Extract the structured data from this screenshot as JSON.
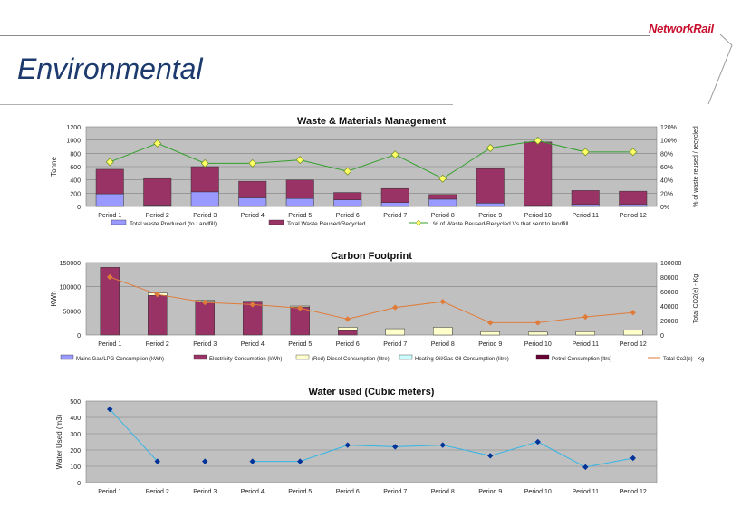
{
  "page": {
    "title": "Environmental",
    "logo": "NetworkRail"
  },
  "colors": {
    "title": "#1c3a6e",
    "logo": "#c8102e",
    "plot_bg": "#c0c0c0",
    "bar_maroon": "#993366",
    "bar_lilac": "#9999ff",
    "bar_cream": "#ffffcc",
    "line_green": "#33a02c",
    "marker_yellow": "#ffff66",
    "line_orange": "#e07b39",
    "line_blue": "#33b5e5",
    "marker_navy": "#003399"
  },
  "chart_data": [
    {
      "type": "bar",
      "title": "Waste & Materials Management",
      "ylabel": "Tonne",
      "y2label": "% of waste reused / recycled",
      "ylim": [
        0,
        1200
      ],
      "yticks": [
        "0",
        "200",
        "400",
        "600",
        "800",
        "1000",
        "1200"
      ],
      "y2lim": [
        0,
        120
      ],
      "y2ticks": [
        "0%",
        "20%",
        "40%",
        "60%",
        "80%",
        "100%",
        "120%"
      ],
      "categories": [
        "Period 1",
        "Period 2",
        "Period 3",
        "Period 4",
        "Period 5",
        "Period 6",
        "Period 7",
        "Period 8",
        "Period 9",
        "Period 10",
        "Period 11",
        "Period 12"
      ],
      "series": [
        {
          "name": "Total waste Produced (to Landfill)",
          "kind": "bar-bottom",
          "color": "#9999ff",
          "values": [
            190,
            20,
            220,
            130,
            120,
            100,
            60,
            110,
            50,
            15,
            30,
            30
          ]
        },
        {
          "name": "Total Waste Reused/Recycled",
          "kind": "bar-top",
          "color": "#993366",
          "values": [
            370,
            400,
            380,
            250,
            280,
            110,
            210,
            70,
            520,
            955,
            210,
            200
          ]
        },
        {
          "name": "% of Waste Reused/Recycled Vs that sent to landfill",
          "kind": "line",
          "axis": "y2",
          "values": [
            67,
            95,
            65,
            65,
            70,
            53,
            78,
            42,
            88,
            99,
            82,
            82
          ]
        }
      ]
    },
    {
      "type": "bar",
      "title": "Carbon Footprint",
      "ylabel": "KWh",
      "y2label": "Total CO2(e) - Kg",
      "ylim": [
        0,
        150000
      ],
      "yticks": [
        "0",
        "50000",
        "100000",
        "150000"
      ],
      "y2lim": [
        0,
        100000
      ],
      "y2ticks": [
        "0",
        "20000",
        "40000",
        "60000",
        "80000",
        "100000"
      ],
      "categories": [
        "Period 1",
        "Period 2",
        "Period 3",
        "Period 4",
        "Period 5",
        "Period 6",
        "Period 7",
        "Period 8",
        "Period 9",
        "Period 10",
        "Period 11",
        "Period 12"
      ],
      "series": [
        {
          "name": "Mains Gas/LPG Consumption (kWh)",
          "kind": "bar",
          "color": "#9999ff",
          "values": [
            0,
            0,
            0,
            0,
            0,
            0,
            0,
            0,
            0,
            0,
            0,
            0
          ]
        },
        {
          "name": "Electricity Consumption (kWh)",
          "kind": "bar",
          "color": "#993366",
          "values": [
            140000,
            82000,
            70000,
            70000,
            58000,
            9000,
            0,
            0,
            0,
            0,
            0,
            0
          ]
        },
        {
          "name": "(Red) Diesel Consumption (litre)",
          "kind": "bar",
          "color": "#ffffcc",
          "values": [
            0,
            5000,
            2000,
            0,
            2000,
            7000,
            13000,
            16000,
            7000,
            6000,
            7000,
            10000
          ]
        },
        {
          "name": "Heating Oil/Gas Oil Consumption (litre)",
          "kind": "bar",
          "color": "#ccffff",
          "values": [
            0,
            0,
            0,
            0,
            0,
            0,
            0,
            0,
            0,
            0,
            0,
            0
          ]
        },
        {
          "name": "Petrol Consumption (ltrs)",
          "kind": "bar",
          "color": "#660033",
          "values": [
            0,
            0,
            0,
            0,
            0,
            0,
            0,
            0,
            0,
            0,
            0,
            0
          ]
        },
        {
          "name": "Total Co2(e) - Kg",
          "kind": "line",
          "axis": "y2",
          "color": "#e07b39",
          "values": [
            80000,
            56000,
            45000,
            42000,
            37000,
            22000,
            38000,
            46000,
            17000,
            17000,
            25000,
            31000
          ]
        }
      ]
    },
    {
      "type": "line",
      "title": "Water used (Cubic meters)",
      "ylabel": "Water Used (m3)",
      "ylim": [
        0,
        500
      ],
      "yticks": [
        "0",
        "100",
        "200",
        "300",
        "400",
        "500"
      ],
      "categories": [
        "Period 1",
        "Period 2",
        "Period 3",
        "Period 4",
        "Period 5",
        "Period 6",
        "Period 7",
        "Period 8",
        "Period 9",
        "Period 10",
        "Period 11",
        "Period 12"
      ],
      "series": [
        {
          "name": "Water used",
          "values": [
            450,
            130,
            130,
            130,
            130,
            230,
            220,
            230,
            165,
            250,
            95,
            150
          ],
          "connected": [
            true,
            true,
            false,
            false,
            true,
            true,
            true,
            true,
            true,
            true,
            true,
            true
          ]
        }
      ]
    }
  ]
}
